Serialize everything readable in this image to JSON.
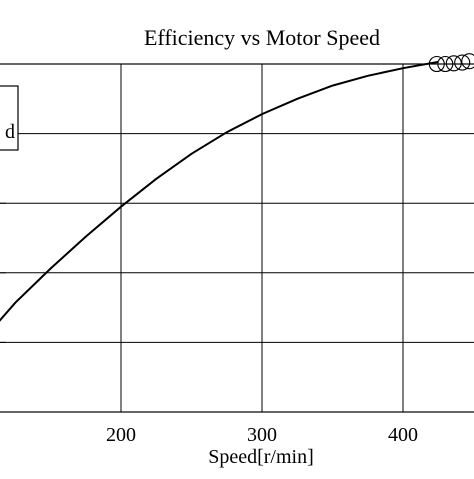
{
  "chart_data": {
    "type": "line",
    "title": "Efficiency vs Motor Speed",
    "xlabel": "Speed[r/min]",
    "ylabel": "",
    "xlim": [
      113,
      447
    ],
    "ylim": [
      0,
      5
    ],
    "x_ticks": [
      200,
      300,
      400
    ],
    "y_ticks": [
      1,
      2,
      3,
      4
    ],
    "grid": true,
    "legend": {
      "position": "top-left",
      "entry_text": "d"
    },
    "series": [
      {
        "style": "line",
        "color": "#000000",
        "x": [
          113,
          125,
          150,
          175,
          200,
          225,
          250,
          275,
          300,
          325,
          350,
          375,
          400,
          425
        ],
        "y": [
          1.29,
          1.57,
          2.06,
          2.52,
          2.95,
          3.35,
          3.71,
          4.02,
          4.28,
          4.5,
          4.69,
          4.83,
          4.94,
          5.03
        ]
      },
      {
        "style": "marker",
        "marker": "circle-open",
        "color": "#000000",
        "x": [
          424,
          430,
          436,
          442,
          447
        ],
        "y": [
          5.0,
          5.0,
          5.01,
          5.02,
          5.04
        ]
      }
    ]
  }
}
